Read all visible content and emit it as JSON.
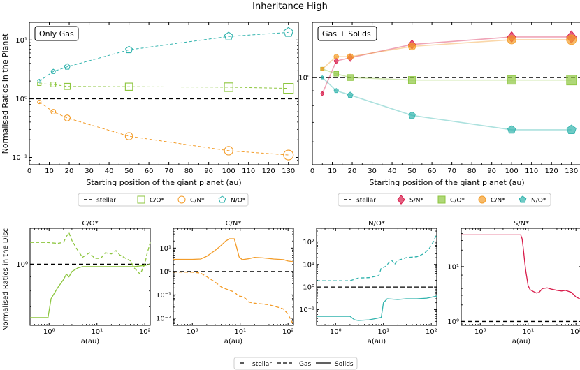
{
  "figure_title": "Inheritance High",
  "colors": {
    "co": "#8dc63f",
    "cn": "#f39c28",
    "no": "#30b3ad",
    "sn": "#d81b4a",
    "stellar": "#000000"
  },
  "chart_data": [
    {
      "id": "top-left",
      "type": "line",
      "title": "Only Gas",
      "xlabel": "Starting position of the giant planet (au)",
      "ylabel": "Normalised Ratios in the Planet",
      "xlim": [
        0,
        135
      ],
      "ylim": [
        0.075,
        20
      ],
      "yscale": "log",
      "xticks": [
        0,
        10,
        20,
        30,
        40,
        50,
        60,
        70,
        80,
        90,
        100,
        110,
        120,
        130
      ],
      "yticks": [
        {
          "v": 0.1,
          "label": "10⁻¹"
        },
        {
          "v": 1,
          "label": "10⁰"
        },
        {
          "v": 10,
          "label": "10¹"
        }
      ],
      "stellar": 1,
      "series": [
        {
          "name": "C/O*",
          "color": "#8dc63f",
          "marker": "square",
          "x": [
            5,
            12,
            19,
            50,
            100,
            130
          ],
          "y": [
            1.8,
            1.75,
            1.62,
            1.6,
            1.57,
            1.5
          ]
        },
        {
          "name": "C/N*",
          "color": "#f39c28",
          "marker": "circle",
          "x": [
            5,
            12,
            19,
            50,
            100,
            130
          ],
          "y": [
            0.88,
            0.6,
            0.47,
            0.23,
            0.13,
            0.11
          ]
        },
        {
          "name": "N/O*",
          "color": "#30b3ad",
          "marker": "pentagon",
          "x": [
            5,
            12,
            19,
            50,
            100,
            130
          ],
          "y": [
            2.0,
            2.9,
            3.5,
            6.8,
            11.5,
            13.5
          ]
        }
      ],
      "legend": [
        "stellar",
        "C/O*",
        "C/N*",
        "N/O*"
      ]
    },
    {
      "id": "top-right",
      "type": "line",
      "title": "Gas + Solids",
      "xlabel": "Starting position of the giant planet (au)",
      "ylabel": "",
      "xlim": [
        0,
        135
      ],
      "ylim": [
        0.5,
        1.55
      ],
      "yscale": "log",
      "xticks": [
        0,
        10,
        20,
        30,
        40,
        50,
        60,
        70,
        80,
        90,
        100,
        110,
        120,
        130
      ],
      "yticks": [
        {
          "v": 1,
          "label": "10⁰"
        }
      ],
      "stellar": 1,
      "series": [
        {
          "name": "S/N*",
          "color": "#d81b4a",
          "marker": "diamond",
          "x": [
            5,
            12,
            19,
            50,
            100,
            130
          ],
          "y": [
            0.88,
            1.14,
            1.17,
            1.3,
            1.38,
            1.38
          ]
        },
        {
          "name": "C/O*",
          "color": "#8dc63f",
          "marker": "square",
          "x": [
            5,
            12,
            19,
            50,
            100,
            130
          ],
          "y": [
            1.07,
            1.03,
            1.0,
            0.98,
            0.98,
            0.98
          ]
        },
        {
          "name": "C/N*",
          "color": "#f39c28",
          "marker": "circle",
          "x": [
            5,
            12,
            19,
            50,
            100,
            130
          ],
          "y": [
            1.07,
            1.18,
            1.18,
            1.28,
            1.35,
            1.35
          ]
        },
        {
          "name": "N/O*",
          "color": "#30b3ad",
          "marker": "pentagon",
          "x": [
            5,
            12,
            19,
            50,
            100,
            130
          ],
          "y": [
            1.0,
            0.9,
            0.87,
            0.74,
            0.66,
            0.66
          ]
        }
      ],
      "legend": [
        "stellar",
        "S/N*",
        "C/O*",
        "C/N*",
        "N/O*"
      ]
    },
    {
      "id": "bottom-co",
      "type": "line",
      "title": "C/O*",
      "xlabel": "a(au)",
      "ylabel": "Normalised Ratios in the Disc",
      "xscale": "log",
      "xlim": [
        0.4,
        130
      ],
      "yscale": "log",
      "ylim": [
        0.6,
        1.35
      ],
      "xticks": [
        {
          "v": 1,
          "label": "10⁰"
        },
        {
          "v": 10,
          "label": "10¹"
        },
        {
          "v": 100,
          "label": "10²"
        }
      ],
      "yticks": [
        {
          "v": 1,
          "label": "10⁰"
        }
      ],
      "stellar": 1,
      "color": "#8dc63f",
      "gas": [
        [
          0.4,
          1.2
        ],
        [
          0.9,
          1.2
        ],
        [
          1.5,
          1.19
        ],
        [
          2.0,
          1.2
        ],
        [
          2.3,
          1.26
        ],
        [
          2.6,
          1.3
        ],
        [
          3.0,
          1.22
        ],
        [
          4.0,
          1.12
        ],
        [
          5.0,
          1.06
        ],
        [
          7.0,
          1.1
        ],
        [
          9.0,
          1.05
        ],
        [
          12.0,
          1.05
        ],
        [
          15.0,
          1.1
        ],
        [
          20.0,
          1.09
        ],
        [
          25.0,
          1.12
        ],
        [
          30.0,
          1.08
        ],
        [
          40.0,
          1.05
        ],
        [
          50.0,
          1.03
        ],
        [
          60.0,
          0.97
        ],
        [
          80.0,
          0.92
        ],
        [
          100.0,
          1.0
        ],
        [
          110.0,
          1.08
        ],
        [
          130.0,
          1.2
        ]
      ],
      "solids": [
        [
          0.4,
          0.64
        ],
        [
          0.95,
          0.64
        ],
        [
          1.1,
          0.75
        ],
        [
          1.5,
          0.82
        ],
        [
          2.0,
          0.88
        ],
        [
          2.3,
          0.92
        ],
        [
          2.6,
          0.9
        ],
        [
          3.0,
          0.94
        ],
        [
          4.0,
          0.97
        ],
        [
          5.0,
          0.98
        ],
        [
          10.0,
          0.98
        ],
        [
          30.0,
          0.98
        ],
        [
          60.0,
          0.98
        ],
        [
          100.0,
          0.99
        ],
        [
          130.0,
          1.0
        ]
      ]
    },
    {
      "id": "bottom-cn",
      "type": "line",
      "title": "C/N*",
      "xlabel": "a(au)",
      "ylabel": "",
      "xscale": "log",
      "xlim": [
        0.4,
        130
      ],
      "yscale": "log",
      "ylim": [
        0.005,
        70
      ],
      "xticks": [
        {
          "v": 1,
          "label": "10⁰"
        },
        {
          "v": 10,
          "label": "10¹"
        },
        {
          "v": 100,
          "label": "10²"
        }
      ],
      "yticks": [
        {
          "v": 0.01,
          "label": "10⁻²"
        },
        {
          "v": 0.1,
          "label": "10⁻¹"
        },
        {
          "v": 1,
          "label": "10⁰"
        },
        {
          "v": 10,
          "label": "10¹"
        }
      ],
      "stellar": 1,
      "color": "#f39c28",
      "gas": [
        [
          0.4,
          0.95
        ],
        [
          1.0,
          0.93
        ],
        [
          1.5,
          0.85
        ],
        [
          2.0,
          0.6
        ],
        [
          3.0,
          0.35
        ],
        [
          4.0,
          0.22
        ],
        [
          5.0,
          0.18
        ],
        [
          7.0,
          0.14
        ],
        [
          8.0,
          0.12
        ],
        [
          9.0,
          0.09
        ],
        [
          11.0,
          0.085
        ],
        [
          13.0,
          0.07
        ],
        [
          15.0,
          0.05
        ],
        [
          18.0,
          0.045
        ],
        [
          25.0,
          0.042
        ],
        [
          40.0,
          0.038
        ],
        [
          60.0,
          0.03
        ],
        [
          80.0,
          0.025
        ],
        [
          100.0,
          0.015
        ],
        [
          120.0,
          0.007
        ],
        [
          130.0,
          0.006
        ]
      ],
      "solids": [
        [
          0.4,
          3.3
        ],
        [
          1.0,
          3.3
        ],
        [
          1.5,
          3.4
        ],
        [
          2.0,
          4.5
        ],
        [
          3.0,
          8.0
        ],
        [
          4.0,
          13.0
        ],
        [
          5.0,
          20.0
        ],
        [
          6.0,
          25.0
        ],
        [
          7.5,
          25.0
        ],
        [
          8.5,
          10.0
        ],
        [
          9.5,
          4.2
        ],
        [
          11.0,
          3.2
        ],
        [
          15.0,
          3.5
        ],
        [
          20.0,
          4.0
        ],
        [
          30.0,
          3.8
        ],
        [
          50.0,
          3.4
        ],
        [
          80.0,
          3.2
        ],
        [
          100.0,
          2.8
        ],
        [
          130.0,
          2.6
        ]
      ]
    },
    {
      "id": "bottom-no",
      "type": "line",
      "title": "N/O*",
      "xlabel": "a(au)",
      "ylabel": "",
      "xscale": "log",
      "xlim": [
        0.4,
        130
      ],
      "yscale": "log",
      "ylim": [
        0.02,
        400
      ],
      "xticks": [
        {
          "v": 1,
          "label": "10⁰"
        },
        {
          "v": 10,
          "label": "10¹"
        },
        {
          "v": 100,
          "label": "10²"
        }
      ],
      "yticks": [
        {
          "v": 0.1,
          "label": "10⁻¹"
        },
        {
          "v": 1,
          "label": "10⁰"
        },
        {
          "v": 10,
          "label": "10¹"
        },
        {
          "v": 100,
          "label": "10²"
        }
      ],
      "stellar": 1,
      "color": "#30b3ad",
      "gas": [
        [
          0.4,
          1.9
        ],
        [
          2.0,
          1.9
        ],
        [
          2.5,
          2.2
        ],
        [
          3.0,
          2.5
        ],
        [
          5.0,
          2.6
        ],
        [
          8.0,
          3.2
        ],
        [
          9.0,
          7.0
        ],
        [
          11.0,
          8.0
        ],
        [
          13.0,
          12.0
        ],
        [
          15.0,
          15.0
        ],
        [
          17.0,
          10.0
        ],
        [
          20.0,
          15.0
        ],
        [
          30.0,
          20.0
        ],
        [
          50.0,
          22.0
        ],
        [
          70.0,
          30.0
        ],
        [
          90.0,
          50.0
        ],
        [
          110.0,
          100.0
        ],
        [
          130.0,
          220.0
        ]
      ],
      "solids": [
        [
          0.4,
          0.05
        ],
        [
          2.0,
          0.05
        ],
        [
          2.5,
          0.035
        ],
        [
          3.0,
          0.033
        ],
        [
          5.0,
          0.035
        ],
        [
          7.0,
          0.04
        ],
        [
          9.0,
          0.045
        ],
        [
          10.0,
          0.2
        ],
        [
          12.0,
          0.3
        ],
        [
          20.0,
          0.28
        ],
        [
          30.0,
          0.3
        ],
        [
          50.0,
          0.3
        ],
        [
          80.0,
          0.32
        ],
        [
          100.0,
          0.35
        ],
        [
          130.0,
          0.4
        ]
      ]
    },
    {
      "id": "bottom-sn",
      "type": "line",
      "title": "S/N*",
      "xlabel": "a(au)",
      "ylabel": "",
      "xscale": "log",
      "xlim": [
        0.4,
        130
      ],
      "yscale": "log",
      "ylim": [
        0.85,
        50
      ],
      "xticks": [
        {
          "v": 1,
          "label": "10⁰"
        },
        {
          "v": 10,
          "label": "10¹"
        },
        {
          "v": 100,
          "label": "10²"
        }
      ],
      "yticks": [
        {
          "v": 1,
          "label": "10⁰"
        },
        {
          "v": 10,
          "label": "10¹"
        }
      ],
      "stellar": 1,
      "color": "#d81b4a",
      "solids": [
        [
          0.4,
          38.0
        ],
        [
          7.0,
          38.0
        ],
        [
          7.5,
          32.0
        ],
        [
          8.0,
          20.0
        ],
        [
          8.5,
          12.0
        ],
        [
          9.0,
          8.0
        ],
        [
          9.5,
          6.0
        ],
        [
          10.0,
          4.5
        ],
        [
          11.0,
          3.8
        ],
        [
          13.0,
          3.5
        ],
        [
          15.0,
          3.3
        ],
        [
          17.0,
          3.4
        ],
        [
          20.0,
          4.0
        ],
        [
          25.0,
          4.1
        ],
        [
          30.0,
          3.9
        ],
        [
          40.0,
          3.7
        ],
        [
          50.0,
          3.6
        ],
        [
          60.0,
          3.7
        ],
        [
          80.0,
          3.4
        ],
        [
          100.0,
          2.8
        ],
        [
          130.0,
          2.5
        ]
      ]
    }
  ],
  "bottom_legend": [
    "stellar",
    "Gas",
    "Solids"
  ]
}
